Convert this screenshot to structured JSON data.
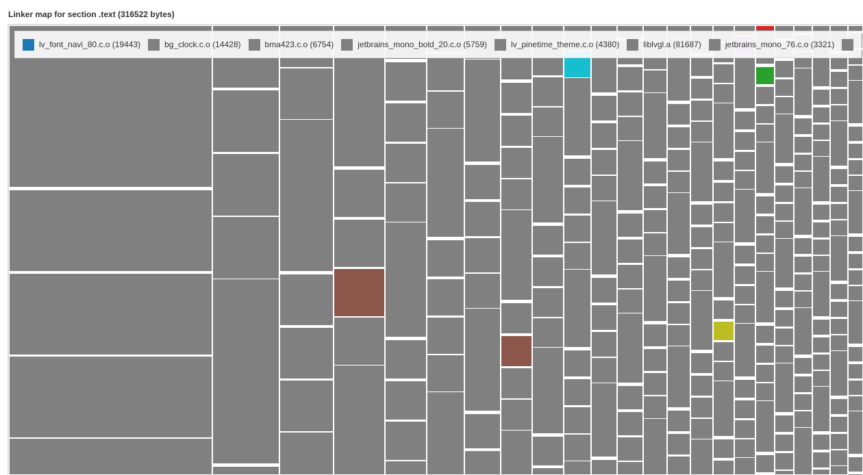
{
  "title": "Linker map for section .text (316522 bytes)",
  "chart_data": {
    "type": "treemap",
    "title": "Linker map for section .text (316522 bytes)",
    "total_bytes": 316522,
    "default_color": "#808080",
    "legend_placement": "top",
    "legend": [
      {
        "label": "lv_font_navi_80.c.o (19443)",
        "name": "lv_font_navi_80.c.o",
        "value": 19443,
        "color": "#1f77b4"
      },
      {
        "label": "bg_clock.c.o (14428)",
        "name": "bg_clock.c.o",
        "value": 14428,
        "color": "#808080"
      },
      {
        "label": "bma423.c.o (6754)",
        "name": "bma423.c.o",
        "value": 6754,
        "color": "#808080"
      },
      {
        "label": "jetbrains_mono_bold_20.c.o (5759)",
        "name": "jetbrains_mono_bold_20.c.o",
        "value": 5759,
        "color": "#808080"
      },
      {
        "label": "lv_pinetime_theme.c.o (4380)",
        "name": "lv_pinetime_theme.c.o",
        "value": 4380,
        "color": "#808080"
      },
      {
        "label": "liblvgl.a (81687)",
        "name": "liblvgl.a",
        "value": 81687,
        "color": "#808080"
      },
      {
        "label": "jetbrains_mono_76.c.o (3321)",
        "name": "jetbrains_mono_76.c.o",
        "value": 3321,
        "color": "#808080"
      }
    ],
    "highlight_colors": [
      "#8c564b",
      "#17becf",
      "#bcbd22",
      "#2ca02c",
      "#d62728",
      "#9467bd"
    ]
  }
}
